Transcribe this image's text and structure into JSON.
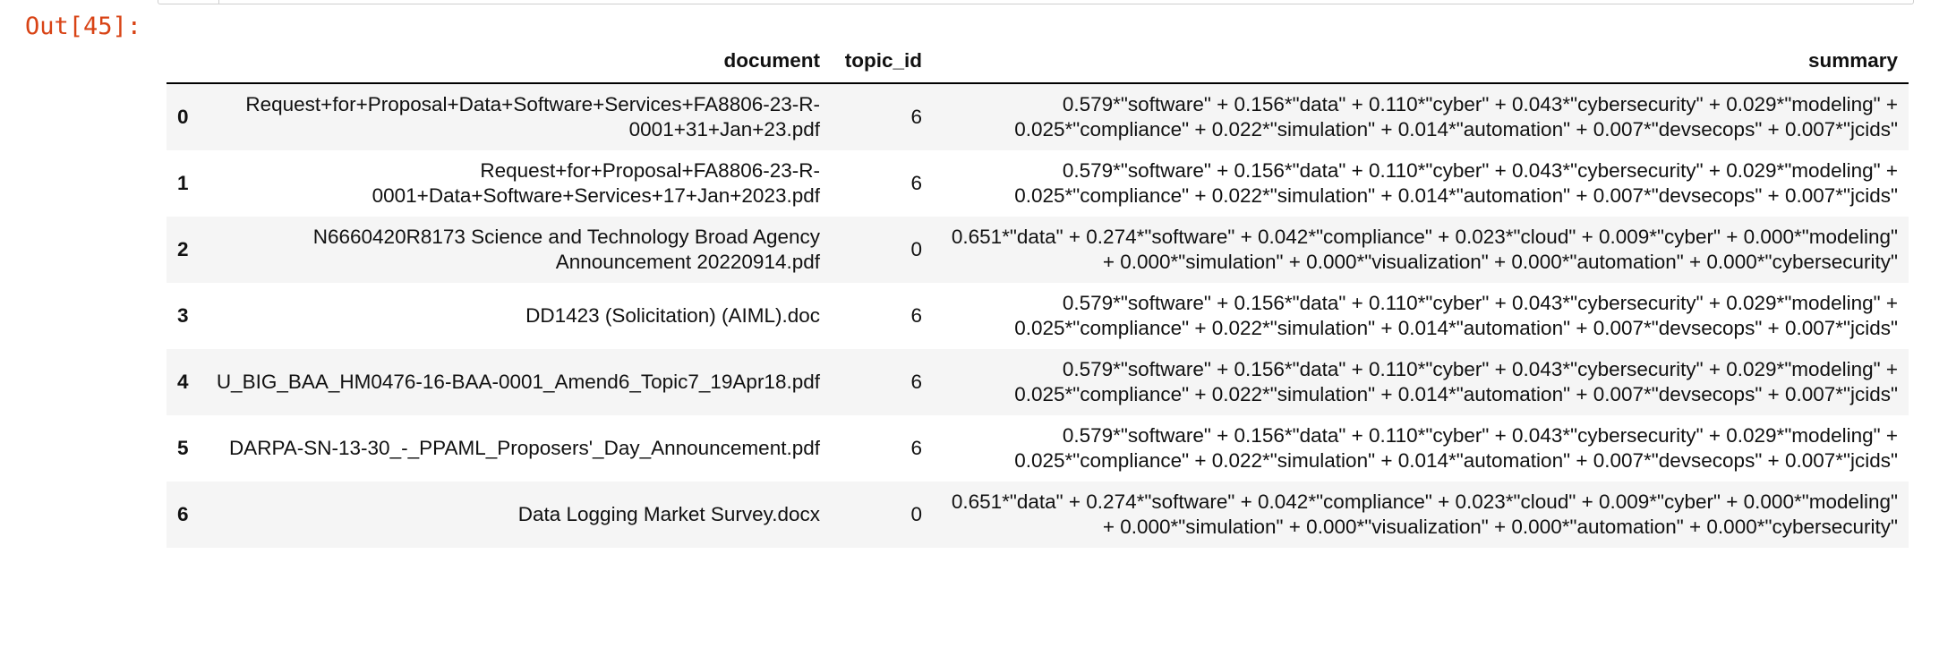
{
  "prompt": {
    "label": "Out[45]:"
  },
  "dataframe": {
    "columns": {
      "index": "",
      "document": "document",
      "topic_id": "topic_id",
      "summary": "summary"
    },
    "rows": [
      {
        "index": "0",
        "document": "Request+for+Proposal+Data+Software+Services+FA8806-23-R-0001+31+Jan+23.pdf",
        "topic_id": "6",
        "summary": "0.579*\"software\" + 0.156*\"data\" + 0.110*\"cyber\" + 0.043*\"cybersecurity\" + 0.029*\"modeling\" + 0.025*\"compliance\" + 0.022*\"simulation\" + 0.014*\"automation\" + 0.007*\"devsecops\" + 0.007*\"jcids\""
      },
      {
        "index": "1",
        "document": "Request+for+Proposal+FA8806-23-R-0001+Data+Software+Services+17+Jan+2023.pdf",
        "topic_id": "6",
        "summary": "0.579*\"software\" + 0.156*\"data\" + 0.110*\"cyber\" + 0.043*\"cybersecurity\" + 0.029*\"modeling\" + 0.025*\"compliance\" + 0.022*\"simulation\" + 0.014*\"automation\" + 0.007*\"devsecops\" + 0.007*\"jcids\""
      },
      {
        "index": "2",
        "document": "N6660420R8173 Science and Technology Broad Agency Announcement 20220914.pdf",
        "topic_id": "0",
        "summary": "0.651*\"data\" + 0.274*\"software\" + 0.042*\"compliance\" + 0.023*\"cloud\" + 0.009*\"cyber\" + 0.000*\"modeling\" + 0.000*\"simulation\" + 0.000*\"visualization\" + 0.000*\"automation\" + 0.000*\"cybersecurity\""
      },
      {
        "index": "3",
        "document": "DD1423 (Solicitation) (AIML).doc",
        "topic_id": "6",
        "summary": "0.579*\"software\" + 0.156*\"data\" + 0.110*\"cyber\" + 0.043*\"cybersecurity\" + 0.029*\"modeling\" + 0.025*\"compliance\" + 0.022*\"simulation\" + 0.014*\"automation\" + 0.007*\"devsecops\" + 0.007*\"jcids\""
      },
      {
        "index": "4",
        "document": "U_BIG_BAA_HM0476-16-BAA-0001_Amend6_Topic7_19Apr18.pdf",
        "topic_id": "6",
        "summary": "0.579*\"software\" + 0.156*\"data\" + 0.110*\"cyber\" + 0.043*\"cybersecurity\" + 0.029*\"modeling\" + 0.025*\"compliance\" + 0.022*\"simulation\" + 0.014*\"automation\" + 0.007*\"devsecops\" + 0.007*\"jcids\""
      },
      {
        "index": "5",
        "document": "DARPA-SN-13-30_-_PPAML_Proposers'_Day_Announcement.pdf",
        "topic_id": "6",
        "summary": "0.579*\"software\" + 0.156*\"data\" + 0.110*\"cyber\" + 0.043*\"cybersecurity\" + 0.029*\"modeling\" + 0.025*\"compliance\" + 0.022*\"simulation\" + 0.014*\"automation\" + 0.007*\"devsecops\" + 0.007*\"jcids\""
      },
      {
        "index": "6",
        "document": "Data Logging Market Survey.docx",
        "topic_id": "0",
        "summary": "0.651*\"data\" + 0.274*\"software\" + 0.042*\"compliance\" + 0.023*\"cloud\" + 0.009*\"cyber\" + 0.000*\"modeling\" + 0.000*\"simulation\" + 0.000*\"visualization\" + 0.000*\"automation\" + 0.000*\"cybersecurity\""
      }
    ]
  },
  "colors": {
    "prompt": "#d84315",
    "stripe": "#f5f5f5",
    "text": "#111111",
    "header_rule": "#000000"
  }
}
